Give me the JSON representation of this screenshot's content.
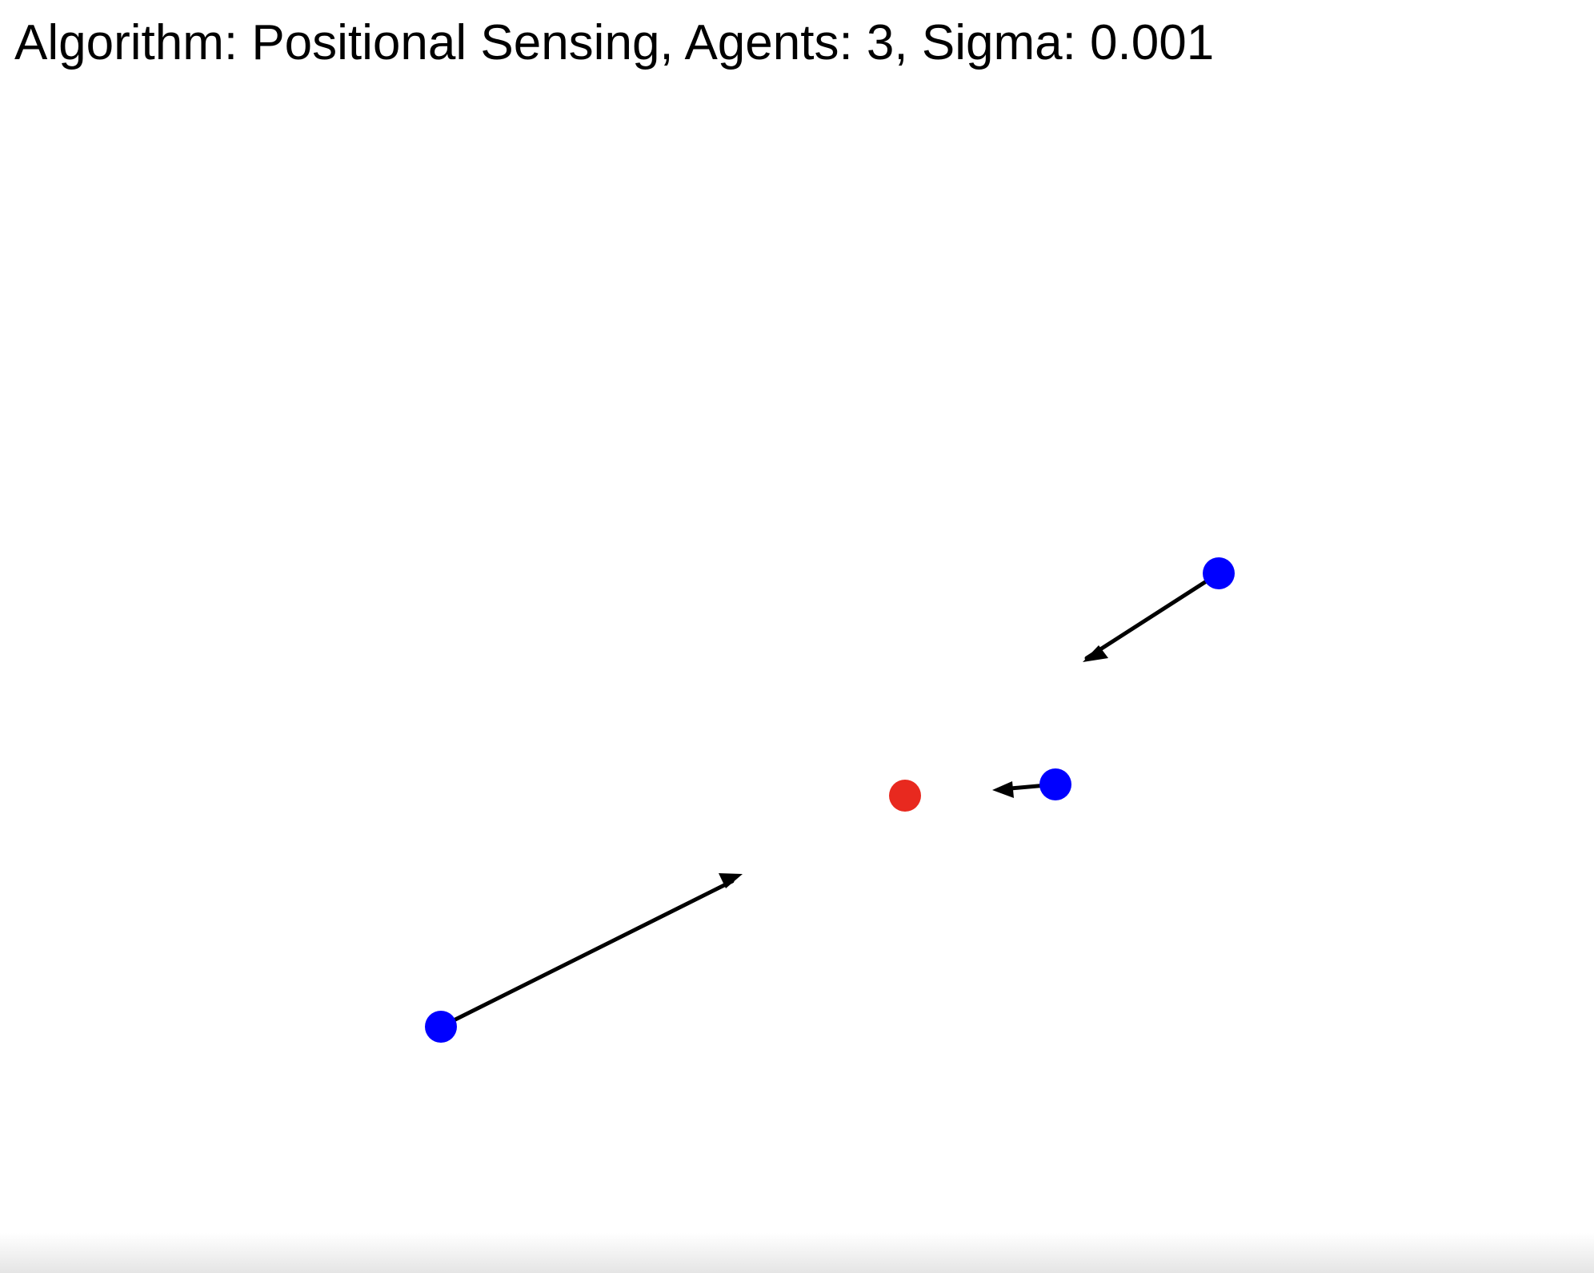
{
  "status": {
    "title": "Algorithm: Positional Sensing, Agents: 3, Sigma: 0.001"
  },
  "simulation": {
    "agent_color": "#0000ff",
    "target_color": "#e8291f",
    "arrow_color": "#000000",
    "background_color": "#ffffff"
  }
}
